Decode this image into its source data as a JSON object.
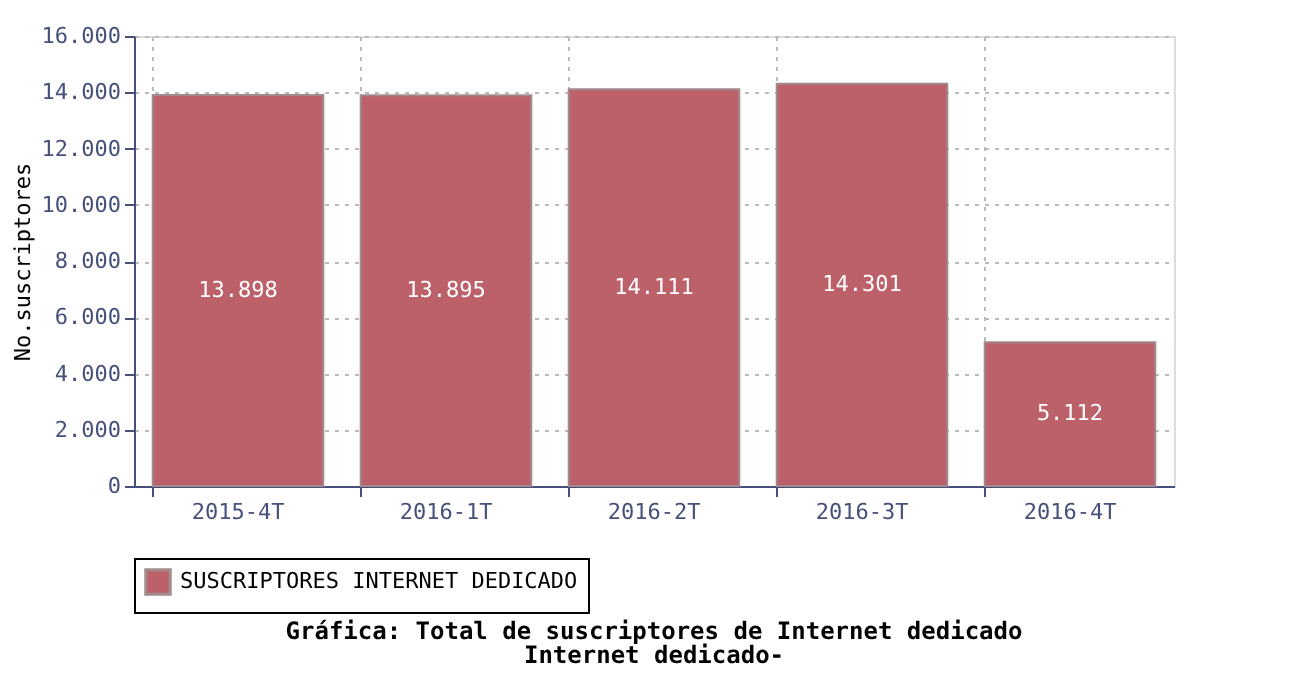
{
  "chart_data": {
    "type": "bar",
    "title": "Gráfica: Total de suscriptores de Internet dedicado",
    "subtitle": "Internet dedicado-",
    "ylabel": "No.suscriptores",
    "categories": [
      "2015-4T",
      "2016-1T",
      "2016-2T",
      "2016-3T",
      "2016-4T"
    ],
    "series": [
      {
        "name": "SUSCRIPTORES INTERNET DEDICADO",
        "color": "#bc616a",
        "values": [
          13898,
          13895,
          14111,
          14301,
          5112
        ]
      }
    ],
    "value_labels": [
      "13.898",
      "13.895",
      "14.111",
      "14.301",
      "5.112"
    ],
    "ylim": [
      0,
      16000
    ],
    "yticks": [
      {
        "value": 0,
        "label": "0"
      },
      {
        "value": 2000,
        "label": "2.000"
      },
      {
        "value": 4000,
        "label": "4.000"
      },
      {
        "value": 6000,
        "label": "6.000"
      },
      {
        "value": 8000,
        "label": "8.000"
      },
      {
        "value": 10000,
        "label": "10.000"
      },
      {
        "value": 12000,
        "label": "12.000"
      },
      {
        "value": 14000,
        "label": "14.000"
      },
      {
        "value": 16000,
        "label": "16.000"
      }
    ],
    "grid": true,
    "legend": "bottom"
  }
}
